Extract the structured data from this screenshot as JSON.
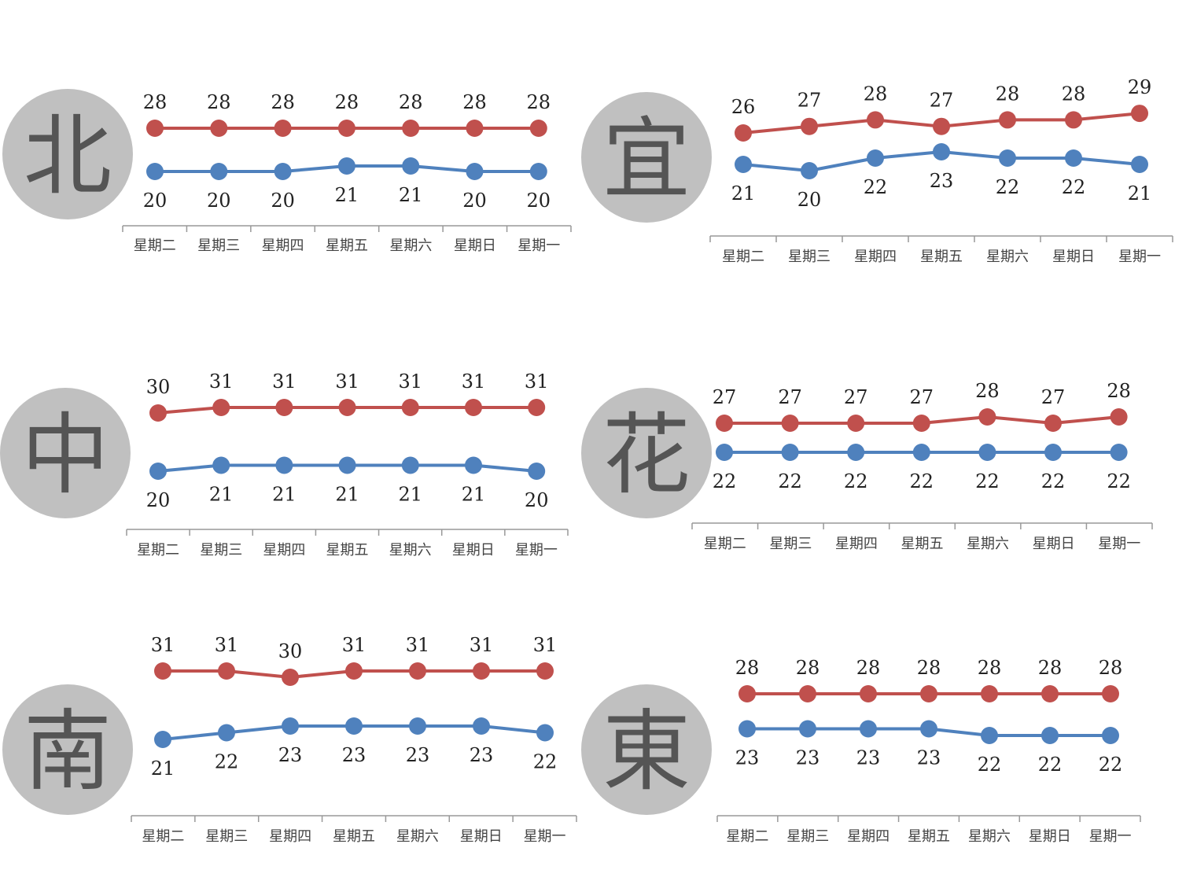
{
  "colors": {
    "high": "#c0504d",
    "low": "#4f81bd",
    "badge_bg": "#c0c0c0",
    "badge_text": "#555555",
    "axis": "#999999"
  },
  "chart_data": [
    {
      "type": "line",
      "region": "北",
      "categories": [
        "星期二",
        "星期三",
        "星期四",
        "星期五",
        "星期六",
        "星期日",
        "星期一"
      ],
      "series": [
        {
          "values": [
            28,
            28,
            28,
            28,
            28,
            28,
            28
          ]
        },
        {
          "values": [
            20,
            20,
            20,
            21,
            21,
            20,
            20
          ]
        }
      ]
    },
    {
      "type": "line",
      "region": "宜",
      "categories": [
        "星期二",
        "星期三",
        "星期四",
        "星期五",
        "星期六",
        "星期日",
        "星期一"
      ],
      "series": [
        {
          "values": [
            26,
            27,
            28,
            27,
            28,
            28,
            29
          ]
        },
        {
          "values": [
            21,
            20,
            22,
            23,
            22,
            22,
            21
          ]
        }
      ]
    },
    {
      "type": "line",
      "region": "中",
      "categories": [
        "星期二",
        "星期三",
        "星期四",
        "星期五",
        "星期六",
        "星期日",
        "星期一"
      ],
      "series": [
        {
          "values": [
            30,
            31,
            31,
            31,
            31,
            31,
            31
          ]
        },
        {
          "values": [
            20,
            21,
            21,
            21,
            21,
            21,
            20
          ]
        }
      ]
    },
    {
      "type": "line",
      "region": "花",
      "categories": [
        "星期二",
        "星期三",
        "星期四",
        "星期五",
        "星期六",
        "星期日",
        "星期一"
      ],
      "series": [
        {
          "values": [
            27,
            27,
            27,
            27,
            28,
            27,
            28
          ]
        },
        {
          "values": [
            22,
            22,
            22,
            22,
            22,
            22,
            22
          ]
        }
      ]
    },
    {
      "type": "line",
      "region": "南",
      "categories": [
        "星期二",
        "星期三",
        "星期四",
        "星期五",
        "星期六",
        "星期日",
        "星期一"
      ],
      "series": [
        {
          "values": [
            31,
            31,
            30,
            31,
            31,
            31,
            31
          ]
        },
        {
          "values": [
            21,
            22,
            23,
            23,
            23,
            23,
            22
          ]
        }
      ]
    },
    {
      "type": "line",
      "region": "東",
      "categories": [
        "星期二",
        "星期三",
        "星期四",
        "星期五",
        "星期六",
        "星期日",
        "星期一"
      ],
      "series": [
        {
          "values": [
            28,
            28,
            28,
            28,
            28,
            28,
            28
          ]
        },
        {
          "values": [
            23,
            23,
            23,
            23,
            22,
            22,
            22
          ]
        }
      ]
    }
  ]
}
